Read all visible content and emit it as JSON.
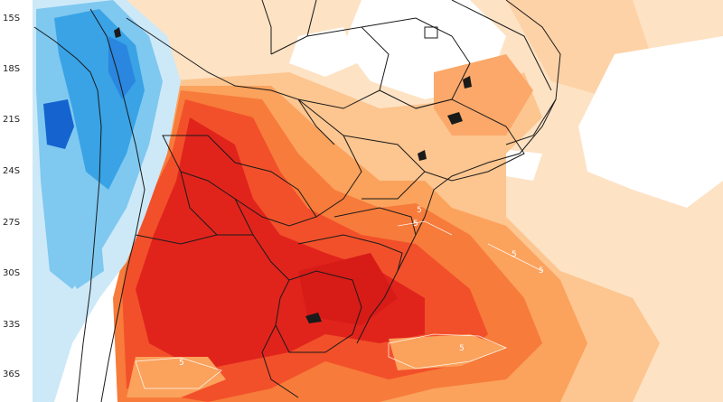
{
  "map": {
    "latitude_labels": [
      "15S",
      "18S",
      "21S",
      "24S",
      "27S",
      "30S",
      "33S",
      "36S"
    ],
    "contour_labels": [
      "5",
      "5",
      "5",
      "5",
      "5",
      "5"
    ],
    "colors": {
      "strong_red": "#e0241c",
      "red": "#f2502a",
      "orange_red": "#f77b3a",
      "orange": "#fba25c",
      "light_orange": "#fdc58f",
      "pale_orange": "#fde2c4",
      "pale_blue": "#cde9f8",
      "light_blue": "#7fc8f0",
      "blue": "#39a3e6",
      "deep_blue": "#1463cf",
      "border_line": "#1a1a1a"
    }
  }
}
